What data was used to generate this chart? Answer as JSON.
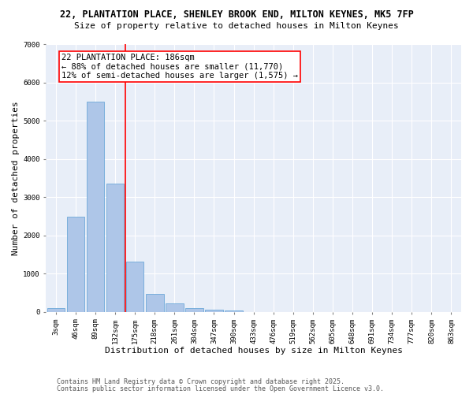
{
  "title_line1": "22, PLANTATION PLACE, SHENLEY BROOK END, MILTON KEYNES, MK5 7FP",
  "title_line2": "Size of property relative to detached houses in Milton Keynes",
  "xlabel": "Distribution of detached houses by size in Milton Keynes",
  "ylabel": "Number of detached properties",
  "bar_labels": [
    "3sqm",
    "46sqm",
    "89sqm",
    "132sqm",
    "175sqm",
    "218sqm",
    "261sqm",
    "304sqm",
    "347sqm",
    "390sqm",
    "433sqm",
    "476sqm",
    "519sqm",
    "562sqm",
    "605sqm",
    "648sqm",
    "691sqm",
    "734sqm",
    "777sqm",
    "820sqm",
    "863sqm"
  ],
  "bar_values": [
    100,
    2500,
    5500,
    3350,
    1310,
    480,
    220,
    110,
    60,
    40,
    0,
    0,
    0,
    0,
    0,
    0,
    0,
    0,
    0,
    0,
    0
  ],
  "bar_color": "#aec6e8",
  "bar_edge_color": "#5a9fd4",
  "vline_color": "red",
  "vline_xindex": 3.5,
  "annotation_text": "22 PLANTATION PLACE: 186sqm\n← 88% of detached houses are smaller (11,770)\n12% of semi-detached houses are larger (1,575) →",
  "ylim": [
    0,
    7000
  ],
  "yticks": [
    0,
    1000,
    2000,
    3000,
    4000,
    5000,
    6000,
    7000
  ],
  "background_color": "#e8eef8",
  "grid_color": "#ffffff",
  "footer_line1": "Contains HM Land Registry data © Crown copyright and database right 2025.",
  "footer_line2": "Contains public sector information licensed under the Open Government Licence v3.0.",
  "title_fontsize": 8.5,
  "subtitle_fontsize": 8,
  "axis_label_fontsize": 8,
  "tick_fontsize": 6.5,
  "annotation_fontsize": 7.5,
  "footer_fontsize": 6
}
